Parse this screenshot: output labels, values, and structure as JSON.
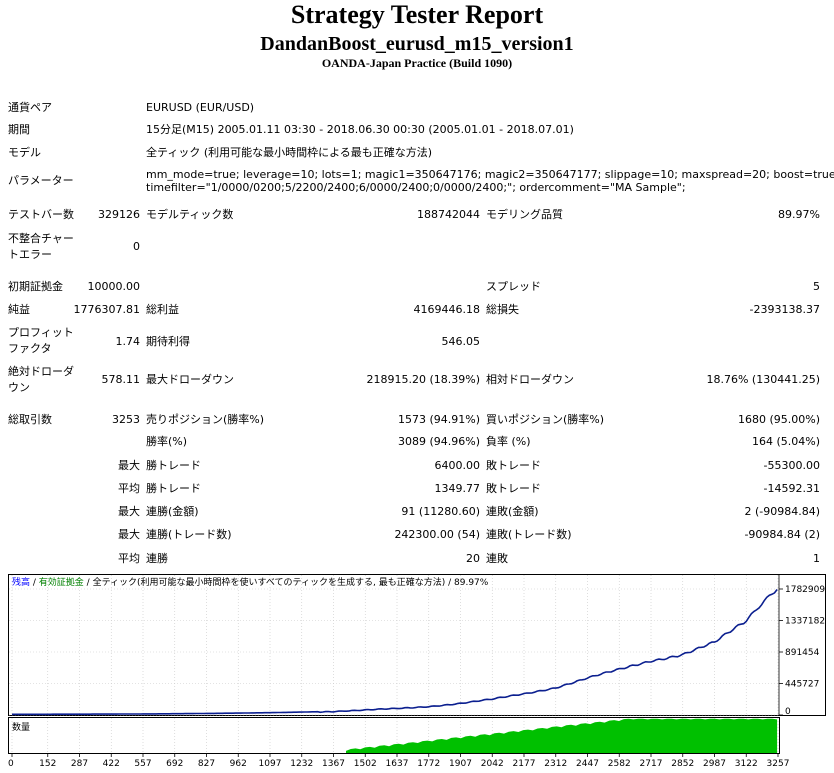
{
  "header": {
    "title": "Strategy Tester Report",
    "ea_name": "DandanBoost_eurusd_m15_version1",
    "server": "OANDA-Japan Practice (Build 1090)"
  },
  "info": {
    "symbol_label": "通貨ペア",
    "symbol_value": "EURUSD (EUR/USD)",
    "period_label": "期間",
    "period_value": "15分足(M15) 2005.01.11 03:30 - 2018.06.30 00:30 (2005.01.01 - 2018.07.01)",
    "model_label": "モデル",
    "model_value": "全ティック (利用可能な最小時間枠による最も正確な方法)",
    "params_label": "パラメーター",
    "params_line1": "mm_mode=true; leverage=10; lots=1; magic1=350647176; magic2=350647177; slippage=10; maxspread=20; boost=true;",
    "params_line2": "timefilter=\"1/0000/0200;5/2200/2400;6/0000/2400;0/0000/2400;\"; ordercomment=\"MA Sample\";"
  },
  "stats": {
    "bars_label": "テストバー数",
    "bars_value": "329126",
    "ticks_label": "モデルティック数",
    "ticks_value": "188742044",
    "quality_label": "モデリング品質",
    "quality_value": "89.97%",
    "mismatch_label": "不整合チャートエラー",
    "mismatch_value": "0",
    "deposit_label": "初期証拠金",
    "deposit_value": "10000.00",
    "spread_label": "スプレッド",
    "spread_value": "5",
    "net_label": "純益",
    "net_value": "1776307.81",
    "gross_profit_label": "総利益",
    "gross_profit_value": "4169446.18",
    "gross_loss_label": "総損失",
    "gross_loss_value": "-2393138.37",
    "pf_label": "プロフィットファクタ",
    "pf_value": "1.74",
    "payoff_label": "期待利得",
    "payoff_value": "546.05",
    "abs_dd_label": "絶対ドローダウン",
    "abs_dd_value": "578.11",
    "max_dd_label": "最大ドローダウン",
    "max_dd_value": "218915.20 (18.39%)",
    "rel_dd_label": "相対ドローダウン",
    "rel_dd_value": "18.76% (130441.25)",
    "total_trades_label": "総取引数",
    "total_trades_value": "3253",
    "short_label": "売りポジション(勝率%)",
    "short_value": "1573 (94.91%)",
    "long_label": "買いポジション(勝率%)",
    "long_value": "1680 (95.00%)",
    "win_label": "勝率(%)",
    "win_value": "3089 (94.96%)",
    "loss_label": "負率 (%)",
    "loss_value": "164 (5.04%)",
    "max_word": "最大",
    "avg_word": "平均",
    "largest_win_label": "勝トレード",
    "largest_win_value": "6400.00",
    "largest_loss_label": "敗トレード",
    "largest_loss_value": "-55300.00",
    "avg_win_label": "勝トレード",
    "avg_win_value": "1349.77",
    "avg_loss_label": "敗トレード",
    "avg_loss_value": "-14592.31",
    "cons_wins_money_label": "連勝(金額)",
    "cons_wins_money_value": "91 (11280.60)",
    "cons_losses_money_label": "連敗(金額)",
    "cons_losses_money_value": "2 (-90984.84)",
    "cons_profit_label": "連勝(トレード数)",
    "cons_profit_value": "242300.00 (54)",
    "cons_loss_label": "連敗(トレード数)",
    "cons_loss_value": "-90984.84 (2)",
    "avg_cons_wins_label": "連勝",
    "avg_cons_wins_value": "20",
    "avg_cons_losses_label": "連敗",
    "avg_cons_losses_value": "1"
  },
  "chart_legend": {
    "balance": "残高",
    "sep1": " / ",
    "equity": "有効証拠金",
    "sep2": " / ",
    "model": "全ティック(利用可能な最小時間枠を使いすべてのティックを生成する, 最も正確な方法)",
    "sep3": " / ",
    "quality": "89.97%"
  },
  "volume_label": "数量",
  "colors": {
    "balance_line": "#0b1f8f",
    "equity_line": "#4caf50",
    "volume_fill": "#00c000",
    "legend_balance": "#0000ff",
    "legend_equity": "#008000"
  },
  "chart_data": {
    "type": "line",
    "series": [
      {
        "name": "残高",
        "x": [
          0,
          152,
          287,
          422,
          557,
          692,
          827,
          962,
          1097,
          1232,
          1367,
          1502,
          1637,
          1772,
          1907,
          2042,
          2177,
          2312,
          2447,
          2582,
          2717,
          2852,
          2987,
          3122,
          3253
        ],
        "values": [
          10000,
          10500,
          11500,
          13000,
          15000,
          18000,
          22000,
          27000,
          33000,
          41000,
          52000,
          68000,
          90000,
          122000,
          165000,
          220000,
          300000,
          390000,
          520000,
          640000,
          770000,
          860000,
          1020000,
          1330000,
          1776307.81
        ]
      }
    ],
    "x_ticks": [
      "0",
      "152",
      "287",
      "422",
      "557",
      "692",
      "827",
      "962",
      "1097",
      "1232",
      "1367",
      "1502",
      "1637",
      "1772",
      "1907",
      "2042",
      "2177",
      "2312",
      "2447",
      "2582",
      "2717",
      "2852",
      "2987",
      "3122",
      "3257"
    ],
    "y_ticks": [
      "1782909",
      "1337182",
      "891454",
      "445727",
      "0"
    ],
    "ylim": [
      0,
      1782909
    ],
    "xlim": [
      0,
      3257
    ],
    "volume": {
      "start_x": 1420,
      "end_x": 3253,
      "start_level": 0.1,
      "end_level": 1.0
    }
  }
}
